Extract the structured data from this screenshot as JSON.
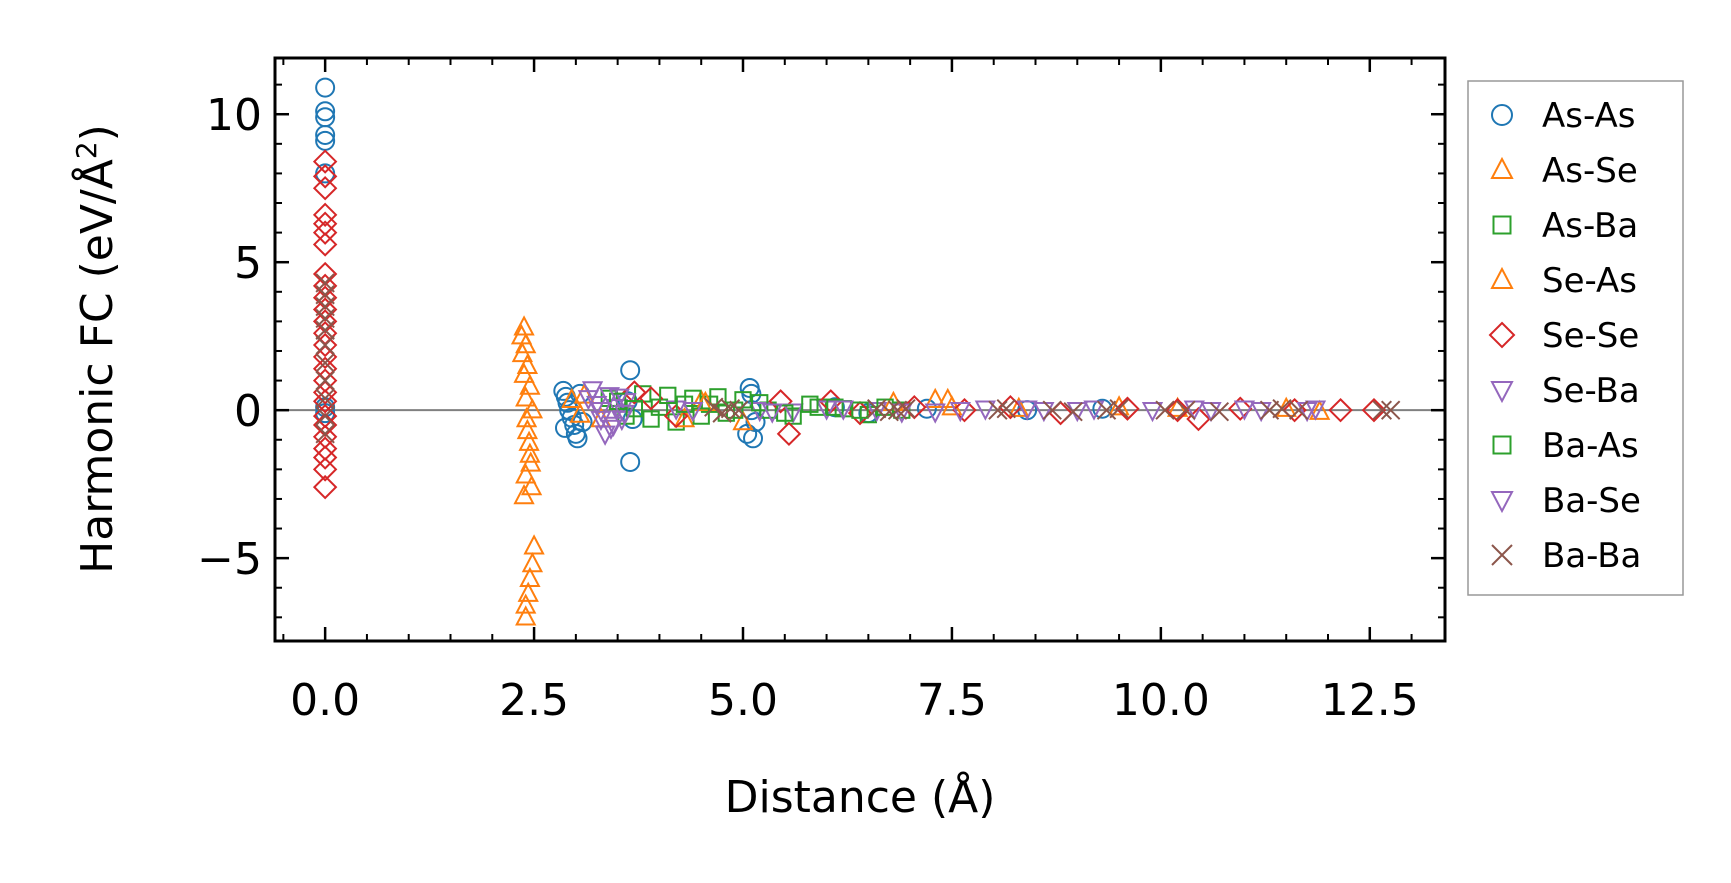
{
  "chart_data": {
    "type": "scatter",
    "title": "",
    "xlabel": "Distance (Å)",
    "ylabel": "Harmonic FC (eV/Å²)",
    "ylabel_parts": {
      "main": "Harmonic FC (eV/Å",
      "sup": "2",
      "close": ")"
    },
    "xlim": [
      -0.6,
      13.4
    ],
    "ylim": [
      -7.8,
      11.9
    ],
    "x_ticks": [
      0.0,
      2.5,
      5.0,
      7.5,
      10.0,
      12.5
    ],
    "x_tick_labels": [
      "0.0",
      "2.5",
      "5.0",
      "7.5",
      "10.0",
      "12.5"
    ],
    "y_ticks": [
      -5,
      0,
      5,
      10
    ],
    "y_tick_labels": [
      "−5",
      "0",
      "5",
      "10"
    ],
    "legend_position": "outside-right",
    "zero_line": true,
    "series": [
      {
        "name": "As-As",
        "marker": "circle",
        "color": "#1f77b4",
        "points": [
          [
            0.0,
            10.9
          ],
          [
            0.0,
            10.1
          ],
          [
            0.0,
            9.9
          ],
          [
            0.0,
            9.3
          ],
          [
            0.0,
            9.1
          ],
          [
            0.0,
            8.0
          ],
          [
            0.0,
            0.1
          ],
          [
            0.0,
            -0.1
          ],
          [
            2.85,
            0.65
          ],
          [
            2.88,
            0.45
          ],
          [
            2.9,
            0.25
          ],
          [
            2.92,
            0.0
          ],
          [
            2.95,
            -0.25
          ],
          [
            2.98,
            -0.5
          ],
          [
            3.0,
            -0.8
          ],
          [
            3.02,
            -0.95
          ],
          [
            2.87,
            -0.6
          ],
          [
            3.05,
            0.55
          ],
          [
            3.08,
            -0.4
          ],
          [
            3.65,
            1.35
          ],
          [
            3.65,
            -1.75
          ],
          [
            3.62,
            0.3
          ],
          [
            3.68,
            -0.3
          ],
          [
            5.08,
            0.75
          ],
          [
            5.1,
            0.55
          ],
          [
            5.05,
            -0.8
          ],
          [
            5.12,
            -0.95
          ],
          [
            5.1,
            0.0
          ],
          [
            5.15,
            -0.4
          ],
          [
            6.1,
            0.1
          ],
          [
            6.5,
            -0.1
          ],
          [
            7.2,
            0.05
          ],
          [
            8.4,
            0.0
          ],
          [
            9.3,
            0.05
          ]
        ]
      },
      {
        "name": "As-Se",
        "marker": "triangle-up",
        "color": "#ff7f0e",
        "points": [
          [
            2.38,
            2.8
          ],
          [
            2.4,
            2.2
          ],
          [
            2.42,
            1.5
          ],
          [
            2.45,
            0.8
          ],
          [
            2.48,
            0.0
          ],
          [
            2.42,
            -0.7
          ],
          [
            2.45,
            -1.5
          ],
          [
            2.4,
            -2.2
          ],
          [
            2.38,
            -2.9
          ],
          [
            2.5,
            -4.6
          ],
          [
            2.48,
            -5.2
          ],
          [
            2.45,
            -5.7
          ],
          [
            2.43,
            -6.2
          ],
          [
            2.4,
            -6.6
          ],
          [
            2.4,
            -7.0
          ],
          [
            3.1,
            0.5
          ],
          [
            3.3,
            -0.3
          ],
          [
            4.5,
            0.3
          ],
          [
            5.0,
            -0.4
          ],
          [
            7.3,
            0.35
          ],
          [
            7.5,
            0.1
          ],
          [
            9.5,
            0.1
          ],
          [
            11.5,
            0.05
          ]
        ]
      },
      {
        "name": "As-Ba",
        "marker": "square",
        "color": "#2ca02c",
        "points": [
          [
            3.4,
            0.4
          ],
          [
            3.6,
            -0.2
          ],
          [
            3.8,
            0.55
          ],
          [
            4.0,
            0.1
          ],
          [
            4.2,
            -0.4
          ],
          [
            4.4,
            0.4
          ],
          [
            4.6,
            0.2
          ],
          [
            4.8,
            -0.1
          ],
          [
            5.0,
            0.35
          ],
          [
            5.3,
            0.0
          ],
          [
            5.6,
            -0.2
          ],
          [
            5.9,
            0.1
          ],
          [
            6.2,
            0.05
          ],
          [
            6.5,
            -0.15
          ],
          [
            6.9,
            0.0
          ]
        ]
      },
      {
        "name": "Se-As",
        "marker": "triangle-up",
        "color": "#ff7f0e",
        "points": [
          [
            2.35,
            2.5
          ],
          [
            2.36,
            1.9
          ],
          [
            2.38,
            1.2
          ],
          [
            2.4,
            0.4
          ],
          [
            2.41,
            -0.3
          ],
          [
            2.44,
            -1.1
          ],
          [
            2.46,
            -1.8
          ],
          [
            2.47,
            -2.6
          ],
          [
            2.95,
            0.35
          ],
          [
            3.05,
            -0.15
          ],
          [
            4.3,
            -0.3
          ],
          [
            4.55,
            0.25
          ],
          [
            6.8,
            0.25
          ],
          [
            7.45,
            0.35
          ],
          [
            8.3,
            0.05
          ],
          [
            10.2,
            0.05
          ],
          [
            11.9,
            -0.05
          ]
        ]
      },
      {
        "name": "Se-Se",
        "marker": "diamond",
        "color": "#d62728",
        "points": [
          [
            0.0,
            8.4
          ],
          [
            0.0,
            7.9
          ],
          [
            0.0,
            7.5
          ],
          [
            0.0,
            6.6
          ],
          [
            0.0,
            6.3
          ],
          [
            0.0,
            6.0
          ],
          [
            0.0,
            5.6
          ],
          [
            0.0,
            4.6
          ],
          [
            0.0,
            4.2
          ],
          [
            0.0,
            3.8
          ],
          [
            0.0,
            3.4
          ],
          [
            0.0,
            3.0
          ],
          [
            0.0,
            2.6
          ],
          [
            0.0,
            2.2
          ],
          [
            0.0,
            1.8
          ],
          [
            0.0,
            1.4
          ],
          [
            0.0,
            1.0
          ],
          [
            0.0,
            0.6
          ],
          [
            0.0,
            0.3
          ],
          [
            0.0,
            -0.2
          ],
          [
            0.0,
            -0.5
          ],
          [
            0.0,
            -0.9
          ],
          [
            0.0,
            -1.3
          ],
          [
            0.0,
            -1.6
          ],
          [
            0.0,
            -2.0
          ],
          [
            0.0,
            -2.6
          ],
          [
            3.7,
            0.6
          ],
          [
            3.9,
            0.4
          ],
          [
            4.2,
            -0.2
          ],
          [
            5.55,
            -0.8
          ],
          [
            5.45,
            0.3
          ],
          [
            6.05,
            0.3
          ],
          [
            6.4,
            -0.1
          ],
          [
            7.05,
            0.1
          ],
          [
            7.65,
            0.0
          ],
          [
            8.2,
            0.1
          ],
          [
            8.8,
            -0.1
          ],
          [
            9.6,
            0.05
          ],
          [
            10.2,
            0.0
          ],
          [
            10.45,
            -0.3
          ],
          [
            10.95,
            0.05
          ],
          [
            11.6,
            0.0
          ],
          [
            12.15,
            0.0
          ],
          [
            12.55,
            0.0
          ]
        ]
      },
      {
        "name": "Se-Ba",
        "marker": "triangle-down",
        "color": "#9467bd",
        "points": [
          [
            3.2,
            0.7
          ],
          [
            3.25,
            0.2
          ],
          [
            3.3,
            -0.3
          ],
          [
            3.35,
            -0.8
          ],
          [
            3.4,
            0.5
          ],
          [
            3.45,
            -0.5
          ],
          [
            3.5,
            0.1
          ],
          [
            3.55,
            -0.3
          ],
          [
            3.6,
            0.3
          ],
          [
            4.2,
            0.05
          ],
          [
            5.2,
            0.0
          ],
          [
            5.6,
            -0.05
          ],
          [
            6.0,
            0.05
          ],
          [
            6.6,
            0.0
          ],
          [
            7.3,
            -0.05
          ],
          [
            7.9,
            0.05
          ],
          [
            8.6,
            0.0
          ],
          [
            9.2,
            0.05
          ],
          [
            10.6,
            0.0
          ],
          [
            11.0,
            0.05
          ],
          [
            11.75,
            0.0
          ],
          [
            11.85,
            0.05
          ]
        ]
      },
      {
        "name": "Ba-As",
        "marker": "square",
        "color": "#2ca02c",
        "points": [
          [
            3.5,
            0.3
          ],
          [
            3.7,
            0.05
          ],
          [
            3.9,
            -0.3
          ],
          [
            4.1,
            0.5
          ],
          [
            4.3,
            0.2
          ],
          [
            4.5,
            -0.2
          ],
          [
            4.7,
            0.45
          ],
          [
            4.9,
            0.0
          ],
          [
            5.2,
            0.25
          ],
          [
            5.5,
            -0.1
          ],
          [
            5.8,
            0.2
          ],
          [
            6.1,
            0.1
          ],
          [
            6.4,
            0.0
          ],
          [
            6.7,
            0.1
          ]
        ]
      },
      {
        "name": "Ba-Se",
        "marker": "triangle-down",
        "color": "#9467bd",
        "points": [
          [
            3.15,
            0.4
          ],
          [
            3.3,
            0.0
          ],
          [
            3.42,
            -0.6
          ],
          [
            3.52,
            0.45
          ],
          [
            3.58,
            -0.1
          ],
          [
            4.4,
            0.0
          ],
          [
            5.35,
            -0.05
          ],
          [
            6.2,
            0.05
          ],
          [
            6.9,
            -0.05
          ],
          [
            7.6,
            0.0
          ],
          [
            8.4,
            0.05
          ],
          [
            9.0,
            0.0
          ],
          [
            9.9,
            0.0
          ],
          [
            10.4,
            0.05
          ],
          [
            11.2,
            0.0
          ]
        ]
      },
      {
        "name": "Ba-Ba",
        "marker": "x",
        "color": "#8c564b",
        "points": [
          [
            0.0,
            4.3
          ],
          [
            0.0,
            3.9
          ],
          [
            0.0,
            3.5
          ],
          [
            0.0,
            3.1
          ],
          [
            0.0,
            2.7
          ],
          [
            0.0,
            2.2
          ],
          [
            0.0,
            1.6
          ],
          [
            0.0,
            1.0
          ],
          [
            0.0,
            0.4
          ],
          [
            0.0,
            -0.2
          ],
          [
            0.0,
            -0.8
          ],
          [
            4.65,
            0.1
          ],
          [
            4.75,
            -0.1
          ],
          [
            4.85,
            0.05
          ],
          [
            4.95,
            0.0
          ],
          [
            6.6,
            0.05
          ],
          [
            6.75,
            -0.05
          ],
          [
            6.85,
            0.0
          ],
          [
            6.95,
            0.05
          ],
          [
            8.05,
            0.0
          ],
          [
            8.15,
            0.05
          ],
          [
            8.7,
            0.0
          ],
          [
            8.95,
            -0.05
          ],
          [
            9.35,
            0.0
          ],
          [
            9.5,
            0.05
          ],
          [
            10.05,
            0.0
          ],
          [
            10.3,
            0.0
          ],
          [
            10.7,
            -0.05
          ],
          [
            11.3,
            0.0
          ],
          [
            11.45,
            0.05
          ],
          [
            11.65,
            0.0
          ],
          [
            12.65,
            0.0
          ],
          [
            12.75,
            0.0
          ]
        ]
      }
    ]
  }
}
